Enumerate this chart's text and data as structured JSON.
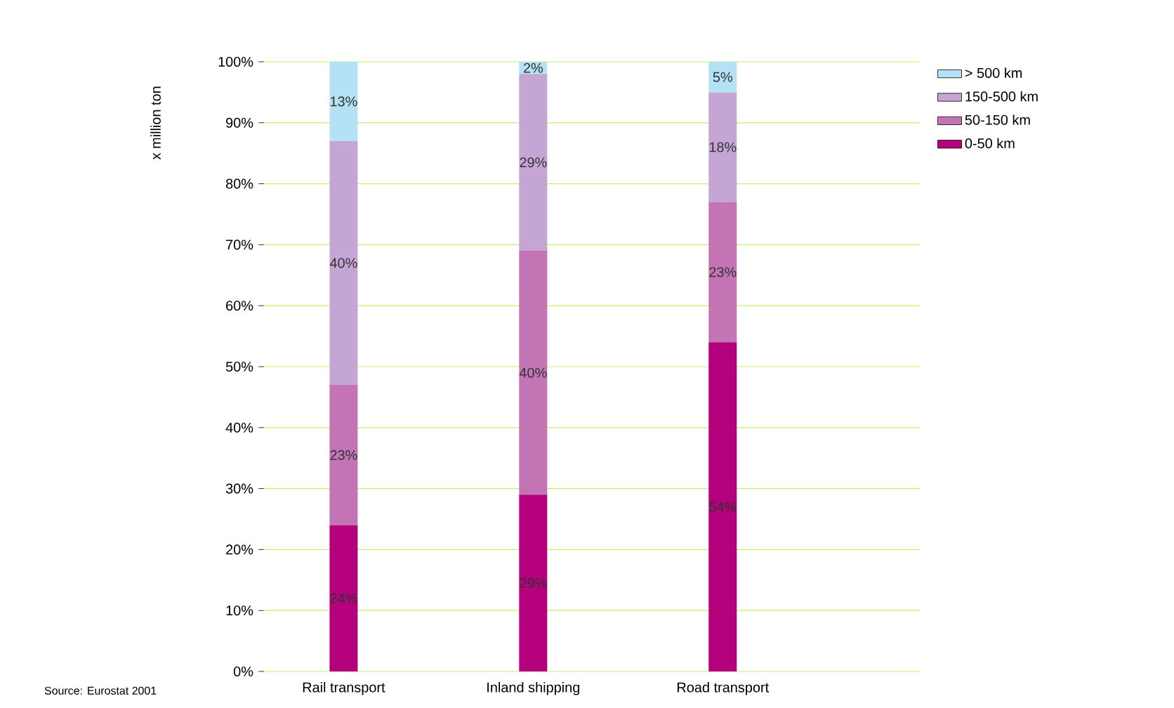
{
  "chart_data": {
    "type": "bar",
    "stacked": true,
    "ylabel": "x million ton",
    "categories": [
      "Rail transport",
      "Inland shipping",
      "Road transport"
    ],
    "series": [
      {
        "name": "0-50 km",
        "color": "#b5007e",
        "values": [
          24,
          29,
          54
        ],
        "value_labels": [
          "24%",
          "29%",
          "54%"
        ]
      },
      {
        "name": "50-150 km",
        "color": "#c274b4",
        "values": [
          23,
          40,
          23
        ],
        "value_labels": [
          "23%",
          "40%",
          "23%"
        ]
      },
      {
        "name": "150-500 km",
        "color": "#c5a5d3",
        "values": [
          40,
          29,
          18
        ],
        "value_labels": [
          "40%",
          "29%",
          "18%"
        ]
      },
      {
        "name": "> 500 km",
        "color": "#b4e2f4",
        "values": [
          13,
          2,
          5
        ],
        "value_labels": [
          "13%",
          "2%",
          "5%"
        ]
      }
    ],
    "ylim": [
      0,
      100
    ],
    "yticks": [
      {
        "value": 0,
        "label": "0%"
      },
      {
        "value": 10,
        "label": "10%"
      },
      {
        "value": 20,
        "label": "20%"
      },
      {
        "value": 30,
        "label": "30%"
      },
      {
        "value": 40,
        "label": "40%"
      },
      {
        "value": 50,
        "label": "50%"
      },
      {
        "value": 60,
        "label": "60%"
      },
      {
        "value": 70,
        "label": "70%"
      },
      {
        "value": 80,
        "label": "80%"
      },
      {
        "value": 90,
        "label": "90%"
      },
      {
        "value": 100,
        "label": "100%"
      }
    ],
    "grid": "y",
    "legend": "top right",
    "annotations": [
      "Source: Eurostat 2001"
    ]
  }
}
